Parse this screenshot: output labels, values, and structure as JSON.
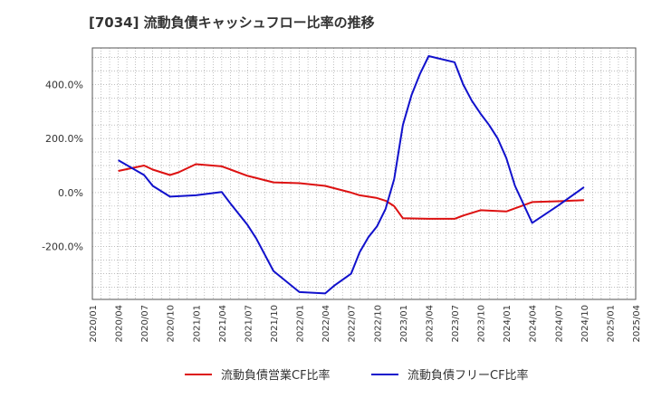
{
  "chart_data": {
    "type": "line",
    "title": "[7034]  流動負債キャッシュフロー比率の推移",
    "xlabel": "",
    "ylabel": "",
    "x_ticks": [
      "2020/01",
      "2020/04",
      "2020/07",
      "2020/10",
      "2021/01",
      "2021/04",
      "2021/07",
      "2021/10",
      "2022/01",
      "2022/04",
      "2022/07",
      "2022/10",
      "2023/01",
      "2023/04",
      "2023/07",
      "2023/10",
      "2024/01",
      "2024/04",
      "2024/07",
      "2024/10",
      "2025/01",
      "2025/04"
    ],
    "y_ticks": [
      "400.0%",
      "200.0%",
      "0.0%",
      "-200.0%"
    ],
    "y_tick_values": [
      400,
      200,
      0,
      -200
    ],
    "ylim": [
      -395,
      535
    ],
    "grid": true,
    "legend_position": "bottom",
    "series": [
      {
        "name": "流動負債営業CF比率",
        "color": "#dd1111",
        "points": [
          [
            "2020/04",
            80
          ],
          [
            "2020/07",
            100
          ],
          [
            "2020/08",
            85
          ],
          [
            "2020/10",
            65
          ],
          [
            "2020/11",
            75
          ],
          [
            "2021/01",
            105
          ],
          [
            "2021/04",
            97
          ],
          [
            "2021/07",
            62
          ],
          [
            "2021/10",
            38
          ],
          [
            "2022/01",
            35
          ],
          [
            "2022/04",
            25
          ],
          [
            "2022/07",
            0
          ],
          [
            "2022/08",
            -10
          ],
          [
            "2022/10",
            -20
          ],
          [
            "2022/11",
            -30
          ],
          [
            "2022/12",
            -50
          ],
          [
            "2023/01",
            -95
          ],
          [
            "2023/04",
            -97
          ],
          [
            "2023/07",
            -97
          ],
          [
            "2023/08",
            -85
          ],
          [
            "2023/10",
            -65
          ],
          [
            "2024/01",
            -70
          ],
          [
            "2024/04",
            -35
          ],
          [
            "2024/07",
            -32
          ],
          [
            "2024/10",
            -28
          ]
        ]
      },
      {
        "name": "流動負債フリーCF比率",
        "color": "#1111cc",
        "points": [
          [
            "2020/04",
            120
          ],
          [
            "2020/07",
            65
          ],
          [
            "2020/08",
            25
          ],
          [
            "2020/10",
            -15
          ],
          [
            "2021/01",
            -10
          ],
          [
            "2021/04",
            2
          ],
          [
            "2021/05",
            -40
          ],
          [
            "2021/07",
            -120
          ],
          [
            "2021/08",
            -170
          ],
          [
            "2021/10",
            -290
          ],
          [
            "2022/01",
            -368
          ],
          [
            "2022/04",
            -373
          ],
          [
            "2022/05",
            -345
          ],
          [
            "2022/07",
            -300
          ],
          [
            "2022/08",
            -220
          ],
          [
            "2022/09",
            -165
          ],
          [
            "2022/10",
            -125
          ],
          [
            "2022/11",
            -60
          ],
          [
            "2022/12",
            50
          ],
          [
            "2023/01",
            250
          ],
          [
            "2023/02",
            360
          ],
          [
            "2023/03",
            440
          ],
          [
            "2023/04",
            505
          ],
          [
            "2023/07",
            482
          ],
          [
            "2023/08",
            400
          ],
          [
            "2023/09",
            340
          ],
          [
            "2023/10",
            292
          ],
          [
            "2023/11",
            250
          ],
          [
            "2023/12",
            200
          ],
          [
            "2024/01",
            128
          ],
          [
            "2024/02",
            25
          ],
          [
            "2024/04",
            -112
          ],
          [
            "2024/07",
            -48
          ],
          [
            "2024/10",
            20
          ]
        ]
      }
    ]
  }
}
